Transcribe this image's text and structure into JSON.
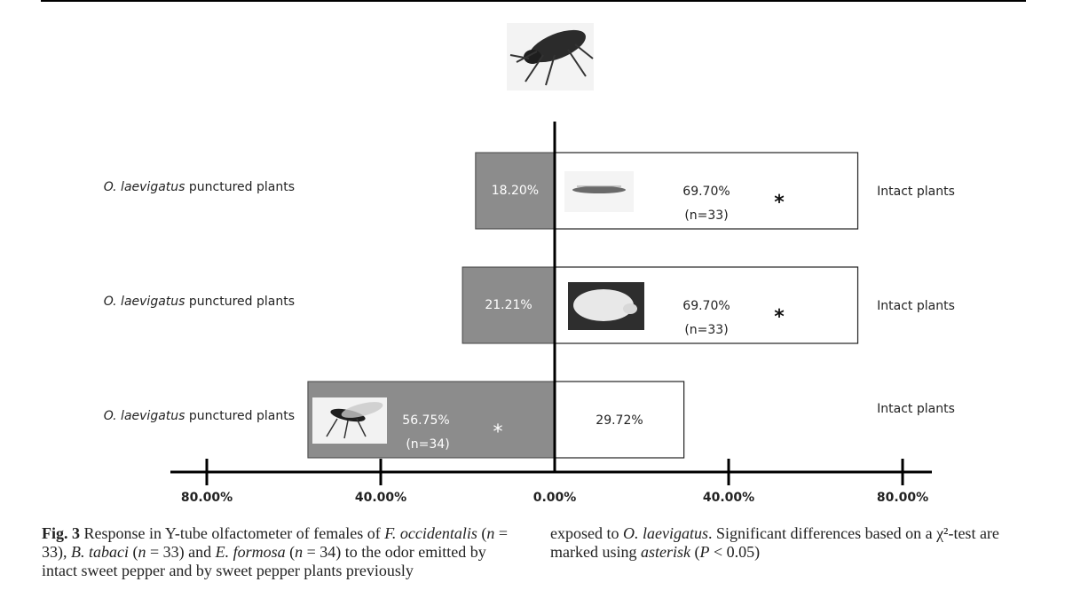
{
  "chart_data": {
    "type": "bar",
    "orientation": "horizontal-diverging",
    "xlim": [
      -100,
      100
    ],
    "tick_labels": [
      "80.00%",
      "40.00%",
      "0.00%",
      "40.00%",
      "80.00%"
    ],
    "tick_values": [
      -80,
      -40,
      0,
      40,
      80
    ],
    "rows": [
      {
        "left_label": "punctured plants",
        "left_species": "O. laevigatus",
        "left_value": 18.2,
        "left_text": "18.20%",
        "left_n": "",
        "left_sig": "",
        "right_label": "Intact plants",
        "right_value": 69.7,
        "right_text": "69.70%",
        "right_n": "(n=33)",
        "right_sig": "*",
        "insect_icon": "thrips-icon"
      },
      {
        "left_label": "punctured plants",
        "left_species": "O. laevigatus",
        "left_value": 21.21,
        "left_text": "21.21%",
        "left_n": "",
        "left_sig": "",
        "right_label": "Intact plants",
        "right_value": 69.7,
        "right_text": "69.70%",
        "right_n": "(n=33)",
        "right_sig": "*",
        "insect_icon": "whitefly-icon"
      },
      {
        "left_label": "punctured plants",
        "left_species": "O. laevigatus",
        "left_value": 56.75,
        "left_text": "56.75%",
        "left_n": "(n=34)",
        "left_sig": "*",
        "right_label": "Intact plants",
        "right_value": 29.72,
        "right_text": "29.72%",
        "right_n": "",
        "right_sig": "",
        "insect_icon": "wasp-icon"
      }
    ],
    "left_color": "#8c8c8c",
    "right_color": "#ffffff",
    "predator_icon": "orius-bug-icon"
  },
  "caption": {
    "fig": "Fig. 3",
    "left_text_1": " Response in Y-tube olfactometer of females of ",
    "sp1": "F. occidentalis",
    "left_text_2": " (",
    "n1": "n",
    "left_text_3": " = 33), ",
    "sp2": "B. tabaci",
    "left_text_4": " (",
    "n2": "n",
    "left_text_5": " = 33) and ",
    "sp3": "E. formosa",
    "left_text_6": " (",
    "n3": "n",
    "left_text_7": " = 34) to the odor emitted by intact sweet pepper and by sweet pepper plants previously",
    "right_text_1": "exposed to ",
    "sp4": "O. laevigatus",
    "right_text_2": ". Significant differences based on a χ²-test are marked using ",
    "asterisk_word": "asterisk",
    "right_text_3": " (",
    "p": "P",
    "right_text_4": " < 0.05)"
  }
}
